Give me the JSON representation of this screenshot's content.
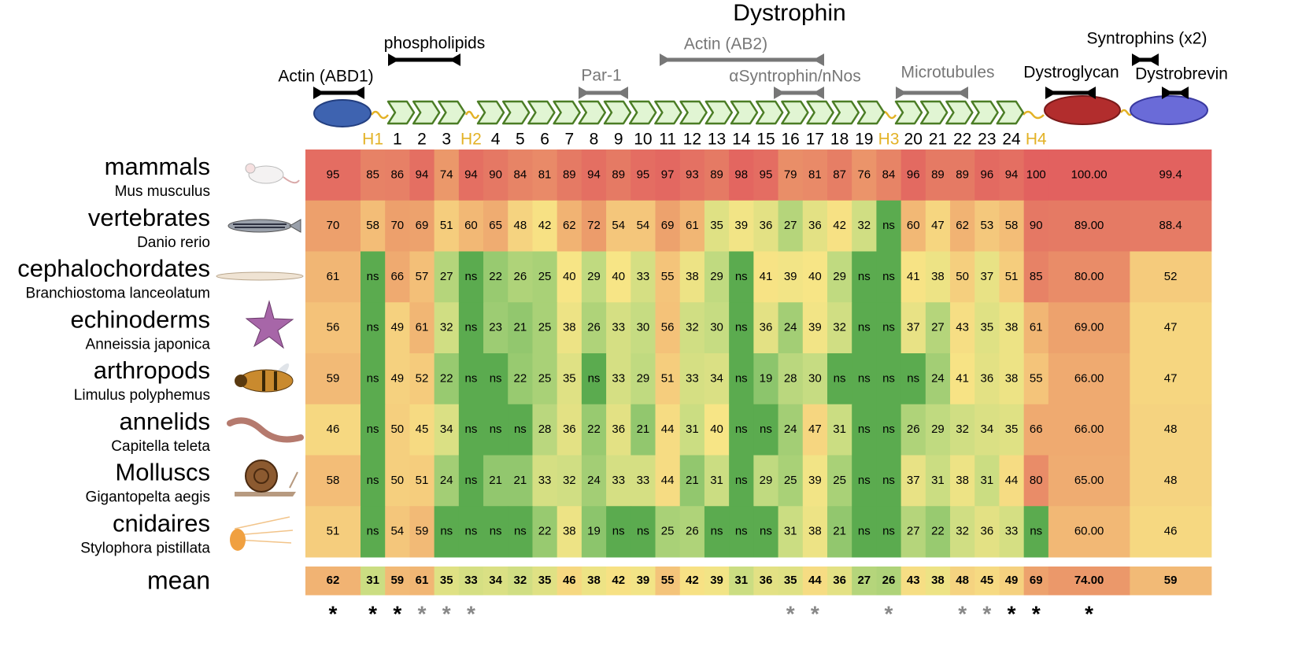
{
  "chart_data": {
    "type": "heatmap",
    "title": "Dystrophin",
    "annotations": [
      "Actin (ABD1)",
      "phospholipids",
      "Par-1",
      "Actin (AB2)",
      "αSyntrophin/nNos",
      "Microtubules",
      "Dystroglycan",
      "Syntrophins (x2)",
      "Dystrobrevin"
    ],
    "annotation_colors": [
      "#000000",
      "#000000",
      "#777777",
      "#777777",
      "#777777",
      "#777777",
      "#000000",
      "#000000",
      "#000000"
    ],
    "categories": [
      null,
      "H1",
      "1",
      "2",
      "3",
      "H2",
      "4",
      "5",
      "6",
      "7",
      "8",
      "9",
      "10",
      "11",
      "12",
      "13",
      "14",
      "15",
      "16",
      "17",
      "18",
      "19",
      "H3",
      "20",
      "21",
      "22",
      "23",
      "24",
      "H4",
      null,
      null
    ],
    "category_colors": [
      null,
      "#e3b226",
      "#000000",
      "#000000",
      "#000000",
      "#e3b226",
      "#000000",
      "#000000",
      "#000000",
      "#000000",
      "#000000",
      "#000000",
      "#000000",
      "#000000",
      "#000000",
      "#000000",
      "#000000",
      "#000000",
      "#000000",
      "#000000",
      "#000000",
      "#000000",
      "#e3b226",
      "#000000",
      "#000000",
      "#000000",
      "#000000",
      "#000000",
      "#e3b226",
      null,
      null
    ],
    "rows": [
      {
        "name": "mammals",
        "species": "Mus musculus",
        "values": [
          95,
          85,
          86,
          94,
          74,
          94,
          90,
          84,
          81,
          89,
          94,
          89,
          95,
          97,
          93,
          89,
          98,
          95,
          79,
          81,
          87,
          76,
          84,
          96,
          89,
          89,
          96,
          94,
          100,
          100,
          99.4
        ],
        "value_labels": [
          "95",
          "85",
          "86",
          "94",
          "74",
          "94",
          "90",
          "84",
          "81",
          "89",
          "94",
          "89",
          "95",
          "97",
          "93",
          "89",
          "98",
          "95",
          "79",
          "81",
          "87",
          "76",
          "84",
          "96",
          "89",
          "89",
          "96",
          "94",
          "100",
          "100.00",
          "99.4"
        ]
      },
      {
        "name": "vertebrates",
        "species": "Danio rerio",
        "values": [
          70,
          58,
          70,
          69,
          51,
          60,
          65,
          48,
          42,
          62,
          72,
          54,
          54,
          69,
          61,
          35,
          39,
          36,
          27,
          36,
          42,
          32,
          null,
          60,
          47,
          62,
          53,
          58,
          90,
          89,
          88.4
        ],
        "value_labels": [
          "70",
          "58",
          "70",
          "69",
          "51",
          "60",
          "65",
          "48",
          "42",
          "62",
          "72",
          "54",
          "54",
          "69",
          "61",
          "35",
          "39",
          "36",
          "27",
          "36",
          "42",
          "32",
          "ns",
          "60",
          "47",
          "62",
          "53",
          "58",
          "90",
          "89.00",
          "88.4"
        ]
      },
      {
        "name": "cephalochordates",
        "species": "Branchiostoma lanceolatum",
        "values": [
          61,
          null,
          66,
          57,
          27,
          null,
          22,
          26,
          25,
          40,
          29,
          40,
          33,
          55,
          38,
          29,
          null,
          41,
          39,
          40,
          29,
          null,
          null,
          41,
          38,
          50,
          37,
          51,
          85,
          80,
          52
        ],
        "value_labels": [
          "61",
          "ns",
          "66",
          "57",
          "27",
          "ns",
          "22",
          "26",
          "25",
          "40",
          "29",
          "40",
          "33",
          "55",
          "38",
          "29",
          "ns",
          "41",
          "39",
          "40",
          "29",
          "ns",
          "ns",
          "41",
          "38",
          "50",
          "37",
          "51",
          "85",
          "80.00",
          "52"
        ]
      },
      {
        "name": "echinoderms",
        "species": "Anneissia japonica",
        "values": [
          56,
          null,
          49,
          61,
          32,
          null,
          23,
          21,
          25,
          38,
          26,
          33,
          30,
          56,
          32,
          30,
          null,
          36,
          24,
          39,
          32,
          null,
          null,
          37,
          27,
          43,
          35,
          38,
          61,
          69,
          47
        ],
        "value_labels": [
          "56",
          "ns",
          "49",
          "61",
          "32",
          "ns",
          "23",
          "21",
          "25",
          "38",
          "26",
          "33",
          "30",
          "56",
          "32",
          "30",
          "ns",
          "36",
          "24",
          "39",
          "32",
          "ns",
          "ns",
          "37",
          "27",
          "43",
          "35",
          "38",
          "61",
          "69.00",
          "47"
        ]
      },
      {
        "name": "arthropods",
        "species": "Limulus polyphemus",
        "values": [
          59,
          null,
          49,
          52,
          22,
          null,
          null,
          22,
          25,
          35,
          null,
          33,
          29,
          51,
          33,
          34,
          null,
          19,
          28,
          30,
          null,
          null,
          null,
          null,
          24,
          41,
          36,
          38,
          55,
          66,
          47
        ],
        "value_labels": [
          "59",
          "ns",
          "49",
          "52",
          "22",
          "ns",
          "ns",
          "22",
          "25",
          "35",
          "ns",
          "33",
          "29",
          "51",
          "33",
          "34",
          "ns",
          "19",
          "28",
          "30",
          "ns",
          "ns",
          "ns",
          "ns",
          "24",
          "41",
          "36",
          "38",
          "55",
          "66.00",
          "47"
        ]
      },
      {
        "name": "annelids",
        "species": "Capitella teleta",
        "values": [
          46,
          null,
          50,
          45,
          34,
          null,
          null,
          null,
          28,
          36,
          22,
          36,
          21,
          44,
          31,
          40,
          null,
          null,
          24,
          47,
          31,
          null,
          null,
          26,
          29,
          32,
          34,
          35,
          66,
          66,
          48
        ],
        "value_labels": [
          "46",
          "ns",
          "50",
          "45",
          "34",
          "ns",
          "ns",
          "ns",
          "28",
          "36",
          "22",
          "36",
          "21",
          "44",
          "31",
          "40",
          "ns",
          "ns",
          "24",
          "47",
          "31",
          "ns",
          "ns",
          "26",
          "29",
          "32",
          "34",
          "35",
          "66",
          "66.00",
          "48"
        ]
      },
      {
        "name": "Molluscs",
        "species": "Gigantopelta aegis",
        "values": [
          58,
          null,
          50,
          51,
          24,
          null,
          21,
          21,
          33,
          32,
          24,
          33,
          33,
          44,
          21,
          31,
          null,
          29,
          25,
          39,
          25,
          null,
          null,
          37,
          31,
          38,
          31,
          44,
          80,
          65,
          48
        ],
        "value_labels": [
          "58",
          "ns",
          "50",
          "51",
          "24",
          "ns",
          "21",
          "21",
          "33",
          "32",
          "24",
          "33",
          "33",
          "44",
          "21",
          "31",
          "ns",
          "29",
          "25",
          "39",
          "25",
          "ns",
          "ns",
          "37",
          "31",
          "38",
          "31",
          "44",
          "80",
          "65.00",
          "48"
        ]
      },
      {
        "name": "cnidaires",
        "species": "Stylophora pistillata",
        "values": [
          51,
          null,
          54,
          59,
          null,
          null,
          null,
          null,
          22,
          38,
          19,
          null,
          null,
          25,
          26,
          null,
          null,
          null,
          31,
          38,
          21,
          null,
          null,
          27,
          22,
          32,
          36,
          33,
          null,
          60,
          46
        ],
        "value_labels": [
          "51",
          "ns",
          "54",
          "59",
          "ns",
          "ns",
          "ns",
          "ns",
          "22",
          "38",
          "19",
          "ns",
          "ns",
          "25",
          "26",
          "ns",
          "ns",
          "ns",
          "31",
          "38",
          "21",
          "ns",
          "ns",
          "27",
          "22",
          "32",
          "36",
          "33",
          "ns",
          "60.00",
          "46"
        ]
      }
    ],
    "mean": {
      "name": "mean",
      "values": [
        62,
        31,
        59,
        61,
        35,
        33,
        34,
        32,
        35,
        46,
        38,
        42,
        39,
        55,
        42,
        39,
        31,
        36,
        35,
        44,
        36,
        27,
        26,
        43,
        38,
        48,
        45,
        49,
        69,
        74,
        59
      ],
      "value_labels": [
        "62",
        "31",
        "59",
        "61",
        "35",
        "33",
        "34",
        "32",
        "35",
        "46",
        "38",
        "42",
        "39",
        "55",
        "42",
        "39",
        "31",
        "36",
        "35",
        "44",
        "36",
        "27",
        "26",
        "43",
        "38",
        "48",
        "45",
        "49",
        "69",
        "74.00",
        "59"
      ]
    },
    "significance": [
      "*",
      "*",
      "*",
      "*",
      "*",
      "*",
      null,
      null,
      null,
      null,
      null,
      null,
      null,
      null,
      null,
      null,
      null,
      null,
      "*",
      "*",
      null,
      null,
      "*",
      null,
      null,
      "*",
      "*",
      "*",
      "*",
      "*",
      null
    ],
    "significance_colors": [
      "#000000",
      "#000000",
      "#000000",
      "#888888",
      "#888888",
      "#888888",
      null,
      null,
      null,
      null,
      null,
      null,
      null,
      null,
      null,
      null,
      null,
      null,
      "#888888",
      "#888888",
      null,
      null,
      "#888888",
      null,
      null,
      "#888888",
      "#888888",
      "#000000",
      "#000000",
      "#000000",
      null
    ],
    "colorscale": [
      [
        20,
        "#8cc56c"
      ],
      [
        30,
        "#c6dc82"
      ],
      [
        40,
        "#f7e586"
      ],
      [
        55,
        "#f4c47a"
      ],
      [
        70,
        "#eda06c"
      ],
      [
        90,
        "#e57864"
      ],
      [
        100,
        "#e2615f"
      ]
    ],
    "null_color": "#5bab4f"
  }
}
